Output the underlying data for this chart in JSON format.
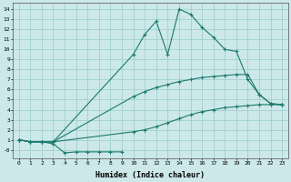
{
  "xlabel": "Humidex (Indice chaleur)",
  "bg_color": "#cce8e8",
  "grid_color": "#99cccc",
  "line_color": "#1a7a6e",
  "xlim": [
    -0.5,
    23.5
  ],
  "ylim": [
    -0.8,
    14.6
  ],
  "xticks": [
    0,
    1,
    2,
    3,
    4,
    5,
    6,
    7,
    8,
    9,
    10,
    11,
    12,
    13,
    14,
    15,
    16,
    17,
    18,
    19,
    20,
    21,
    22,
    23
  ],
  "ytick_vals": [
    0,
    1,
    2,
    3,
    4,
    5,
    6,
    7,
    8,
    9,
    10,
    11,
    12,
    13,
    14
  ],
  "ytick_labels": [
    "-0",
    "1",
    "2",
    "3",
    "4",
    "5",
    "6",
    "7",
    "8",
    "9",
    "10",
    "11",
    "12",
    "13",
    "14"
  ],
  "lines": [
    {
      "x": [
        0,
        1,
        2,
        3,
        4,
        5,
        6,
        7,
        8,
        9
      ],
      "y": [
        1.0,
        0.8,
        0.8,
        0.6,
        -0.3,
        -0.2,
        -0.2,
        -0.2,
        -0.2,
        -0.2
      ]
    },
    {
      "x": [
        0,
        1,
        2,
        3,
        10,
        11,
        12,
        13,
        14,
        15,
        16,
        17,
        18,
        19,
        20,
        21,
        22,
        23
      ],
      "y": [
        1.0,
        0.8,
        0.8,
        0.8,
        1.8,
        2.0,
        2.3,
        2.7,
        3.1,
        3.5,
        3.8,
        4.0,
        4.2,
        4.3,
        4.4,
        4.5,
        4.5,
        4.5
      ]
    },
    {
      "x": [
        0,
        1,
        2,
        3,
        10,
        11,
        12,
        13,
        14,
        15,
        16,
        17,
        18,
        19,
        20,
        21,
        22,
        23
      ],
      "y": [
        1.0,
        0.8,
        0.8,
        0.8,
        5.3,
        5.8,
        6.2,
        6.5,
        6.8,
        7.0,
        7.2,
        7.3,
        7.4,
        7.5,
        7.5,
        5.5,
        4.6,
        4.5
      ]
    },
    {
      "x": [
        0,
        1,
        2,
        3,
        10,
        11,
        12,
        13,
        14,
        15,
        16,
        17,
        18,
        19,
        20,
        21,
        22,
        23
      ],
      "y": [
        1.0,
        0.8,
        0.8,
        0.8,
        9.5,
        11.5,
        12.8,
        9.5,
        14.0,
        13.5,
        12.2,
        11.2,
        10.0,
        9.8,
        7.0,
        5.5,
        4.6,
        4.5
      ]
    }
  ]
}
